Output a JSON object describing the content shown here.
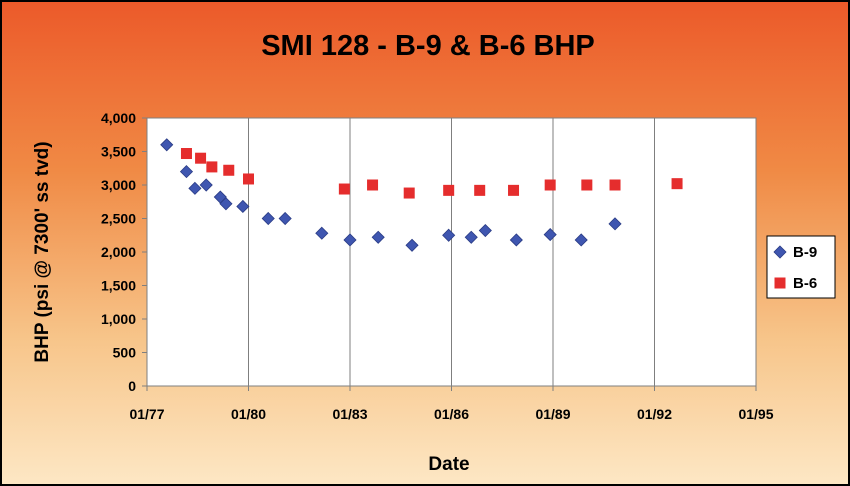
{
  "chart_data": {
    "type": "scatter",
    "title": "SMI 128 - B-9 & B-6 BHP",
    "xlabel": "Date",
    "ylabel": "BHP (psi @ 7300' ss tvd)",
    "x_ticks": [
      "01/77",
      "01/80",
      "01/83",
      "01/86",
      "01/89",
      "01/92",
      "01/95"
    ],
    "y_ticks": [
      "0",
      "500",
      "1,000",
      "1,500",
      "2,000",
      "2,500",
      "3,000",
      "3,500",
      "4,000"
    ],
    "xlim": [
      "1977-01",
      "1995-01"
    ],
    "ylim": [
      0,
      4000
    ],
    "grid": "vertical",
    "legend": "right",
    "series": [
      {
        "name": "B-9",
        "marker": "diamond",
        "color": "#3f56b0",
        "x": [
          "1977-08",
          "1978-03",
          "1978-06",
          "1978-10",
          "1979-03",
          "1979-05",
          "1979-11",
          "1980-08",
          "1981-02",
          "1982-03",
          "1983-01",
          "1983-11",
          "1984-11",
          "1985-12",
          "1986-08",
          "1987-01",
          "1987-12",
          "1988-12",
          "1989-11",
          "1990-11"
        ],
        "y": [
          3600,
          3200,
          2950,
          3000,
          2820,
          2720,
          2680,
          2500,
          2500,
          2280,
          2180,
          2220,
          2100,
          2250,
          2220,
          2320,
          2180,
          2260,
          2180,
          2420
        ]
      },
      {
        "name": "B-6",
        "marker": "square",
        "color": "#e52d2d",
        "x": [
          "1978-03",
          "1978-08",
          "1978-12",
          "1979-06",
          "1980-01",
          "1982-11",
          "1983-09",
          "1984-10",
          "1985-12",
          "1986-11",
          "1987-11",
          "1988-12",
          "1990-01",
          "1990-11",
          "1992-09"
        ],
        "y": [
          3470,
          3400,
          3270,
          3220,
          3090,
          2940,
          3000,
          2880,
          2920,
          2920,
          2920,
          3000,
          3000,
          3000,
          3020
        ]
      }
    ]
  }
}
